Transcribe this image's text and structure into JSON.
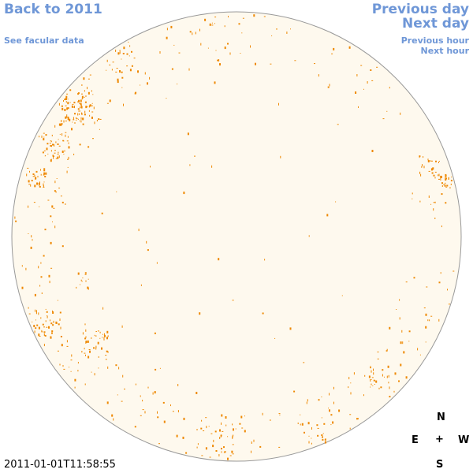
{
  "nav": {
    "back": "Back to 2011",
    "facular": "See facular data",
    "previous_day": "Previous day",
    "next_day": "Next day",
    "previous_hour": "Previous hour",
    "next_hour": "Next hour"
  },
  "compass": {
    "n": "N",
    "e": "E",
    "center": "+",
    "w": "W",
    "s": "S"
  },
  "timestamp": "2011-01-01T11:58:55",
  "colors": {
    "disk_fill": "#fef9ee",
    "disk_edge": "#999999",
    "facula": "#ee8800",
    "link": "#6f97d7"
  }
}
